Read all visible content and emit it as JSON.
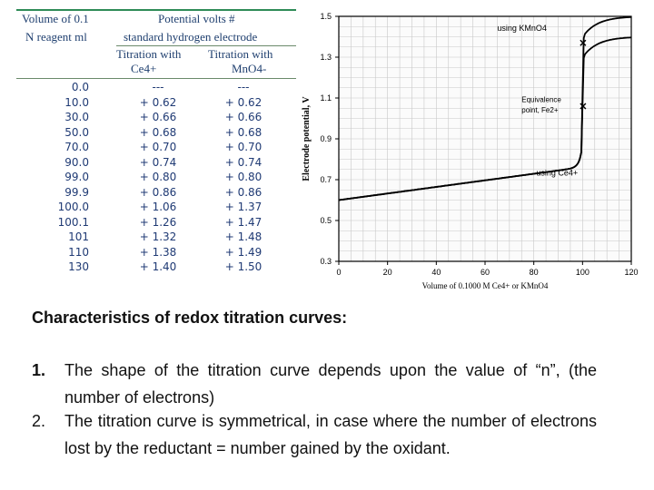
{
  "table": {
    "headers": {
      "volume_line1": "Volume of 0.1",
      "volume_line2": "N reagent ml",
      "potential_line1": "Potential volts #",
      "potential_line2": "standard hydrogen electrode",
      "ce_line1": "Titration with",
      "ce_line2": "Ce4+",
      "kmno4_line1": "Titration with",
      "kmno4_line2": "MnO4-"
    },
    "rows": [
      [
        "0.0",
        "---",
        "---"
      ],
      [
        "10.0",
        "+ 0.62",
        "+ 0.62"
      ],
      [
        "30.0",
        "+ 0.66",
        "+ 0.66"
      ],
      [
        "50.0",
        "+ 0.68",
        "+ 0.68"
      ],
      [
        "70.0",
        "+ 0.70",
        "+ 0.70"
      ],
      [
        "90.0",
        "+ 0.74",
        "+ 0.74"
      ],
      [
        "99.0",
        "+ 0.80",
        "+ 0.80"
      ],
      [
        "99.9",
        "+ 0.86",
        "+ 0.86"
      ],
      [
        "100.0",
        "+ 1.06",
        "+ 1.37"
      ],
      [
        "100.1",
        "+ 1.26",
        "+ 1.47"
      ],
      [
        "101",
        "+ 1.32",
        "+ 1.48"
      ],
      [
        "110",
        "+ 1.38",
        "+ 1.49"
      ],
      [
        "130",
        "+ 1.40",
        "+ 1.50"
      ]
    ]
  },
  "chart_data": {
    "type": "line",
    "xlabel": "Volume of 0.1000 M Ce4+ or KMnO4",
    "ylabel": "Electrode potential, V",
    "xlim": [
      0,
      120
    ],
    "ylim": [
      0.3,
      1.5
    ],
    "x_ticks": [
      0,
      20,
      40,
      60,
      80,
      100,
      120
    ],
    "y_ticks": [
      0.3,
      0.5,
      0.7,
      0.9,
      1.1,
      1.3,
      1.5
    ],
    "grid": true,
    "series": [
      {
        "name": "using KMnO4",
        "x": [
          0,
          10,
          30,
          50,
          70,
          90,
          99,
          99.9,
          100,
          100.1,
          101,
          110,
          130
        ],
        "y": [
          0.6,
          0.62,
          0.66,
          0.68,
          0.7,
          0.74,
          0.8,
          0.86,
          1.37,
          1.47,
          1.48,
          1.49,
          1.5
        ]
      },
      {
        "name": "using Ce4+",
        "x": [
          0,
          10,
          30,
          50,
          70,
          90,
          99,
          99.9,
          100,
          100.1,
          101,
          110,
          130
        ],
        "y": [
          0.6,
          0.62,
          0.66,
          0.68,
          0.7,
          0.74,
          0.8,
          0.86,
          1.06,
          1.26,
          1.32,
          1.38,
          1.4
        ]
      }
    ],
    "annotations": {
      "equivalence_line1": "Equivalence",
      "equivalence_line2": "point, Fe2+"
    },
    "line_color": "#000000"
  },
  "caption": {
    "title": "Characteristics of redox titration curves:",
    "points": [
      {
        "number": "1.",
        "text": "The shape of the titration curve depends upon the value of “n”, (the number of electrons)"
      },
      {
        "number": "2.",
        "text": "The titration curve is symmetrical, in case where the number of electrons lost by the reductant = number gained by the oxidant."
      }
    ]
  }
}
